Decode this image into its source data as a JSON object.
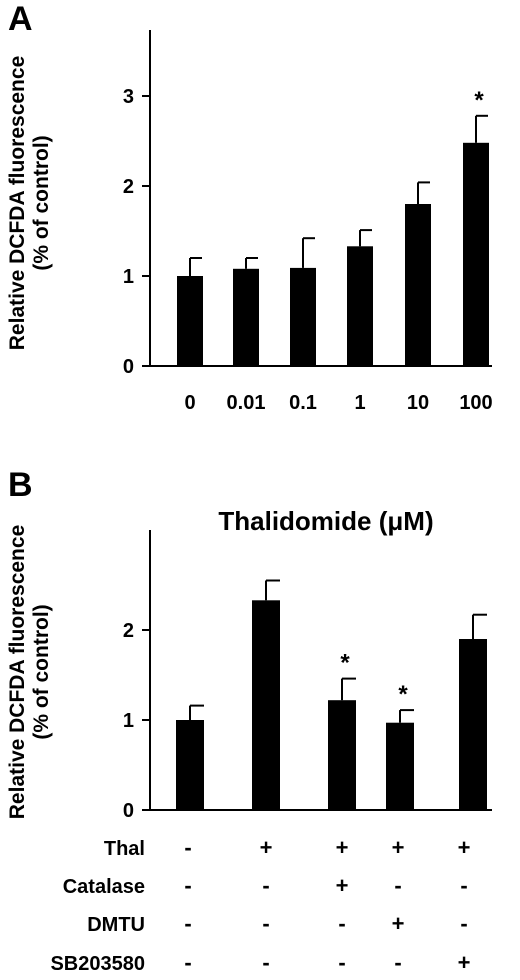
{
  "chart_data": [
    {
      "panel": "A",
      "type": "bar",
      "categories": [
        "0",
        "0.01",
        "0.1",
        "1",
        "10",
        "100"
      ],
      "values": [
        1.0,
        1.08,
        1.09,
        1.33,
        1.8,
        2.48
      ],
      "errors": [
        0.2,
        0.12,
        0.33,
        0.18,
        0.24,
        0.3
      ],
      "significance": [
        "",
        "",
        "",
        "",
        "",
        "*"
      ],
      "ylabel": "Relative DCFDA fluorescence",
      "ylabel2": "(% of control)",
      "xlabel": "Thalidomide (μM)",
      "yticks": [
        "0",
        "1",
        "2",
        "3"
      ],
      "ylim": [
        0,
        3.8
      ],
      "grid": false
    },
    {
      "panel": "B",
      "type": "bar",
      "values": [
        1.0,
        2.33,
        1.22,
        0.97,
        1.9
      ],
      "errors": [
        0.16,
        0.22,
        0.24,
        0.14,
        0.27
      ],
      "significance": [
        "",
        "",
        "*",
        "*",
        ""
      ],
      "ylabel": "Relative DCFDA fluorescence",
      "ylabel2": "(% of control)",
      "yticks": [
        "0",
        "1",
        "2"
      ],
      "ylim": [
        0,
        3.0
      ],
      "grid": false,
      "treatment_table": [
        {
          "label": "Thal",
          "signs": [
            "-",
            "+",
            "+",
            "+",
            "+"
          ]
        },
        {
          "label": "Catalase",
          "signs": [
            "-",
            "-",
            "+",
            "-",
            "-"
          ]
        },
        {
          "label": "DMTU",
          "signs": [
            "-",
            "-",
            "-",
            "+",
            "-"
          ]
        },
        {
          "label": "SB203580",
          "signs": [
            "-",
            "-",
            "-",
            "-",
            "+"
          ]
        }
      ]
    }
  ],
  "colors": {
    "bar": "#000000",
    "axis": "#000000"
  }
}
